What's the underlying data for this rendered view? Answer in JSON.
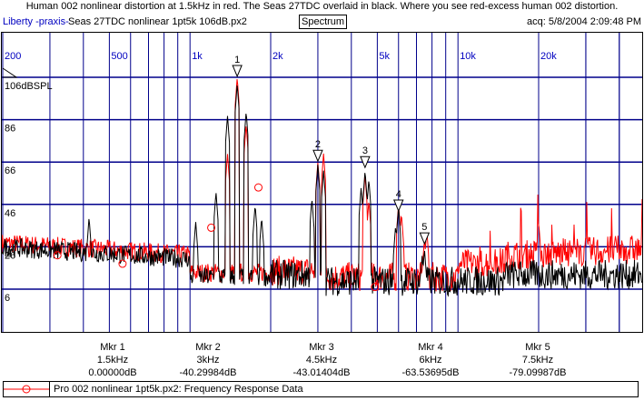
{
  "header": {
    "title": "Human 002 nonlinear distortion at 1.5kHz in red.  The Seas 27TDC overlaid in black. Where you see red-excess human 002 distortion.",
    "brand": "Liberty -praxis-",
    "file": "Seas 27TDC nonlinear 1pt5k 106dB.px2",
    "view_tab": "Spectrum",
    "acq": "acq: 5/8/2004 2:09:48 PM"
  },
  "chart_data": {
    "type": "line",
    "x_scale": "log",
    "xlim": [
      200,
      48000
    ],
    "ylim": [
      -13,
      127
    ],
    "x_tick_labels": [
      {
        "f": 200,
        "label": "200"
      },
      {
        "f": 500,
        "label": "500"
      },
      {
        "f": 1000,
        "label": "1k"
      },
      {
        "f": 2000,
        "label": "2k"
      },
      {
        "f": 5000,
        "label": "5k"
      },
      {
        "f": 10000,
        "label": "10k"
      },
      {
        "f": 20000,
        "label": "20k"
      }
    ],
    "y_tick_labels": [
      {
        "v": 106,
        "label": "106dBSPL"
      },
      {
        "v": 86,
        "label": "86"
      },
      {
        "v": 66,
        "label": "66"
      },
      {
        "v": 46,
        "label": "46"
      },
      {
        "v": 26,
        "label": "26"
      },
      {
        "v": 6,
        "label": "6"
      }
    ],
    "grid": true,
    "colors": {
      "grid": "#00008b",
      "black_series": "#000000",
      "red_series": "#ff0000",
      "marker_label": "#0000c0"
    },
    "series": [
      {
        "name": "Seas 27TDC nonlinear 1pt5k 106dB",
        "color": "#000000",
        "noise_floor_db": 10,
        "peaks": [
          [
            420,
            40
          ],
          [
            1050,
            38
          ],
          [
            1250,
            52
          ],
          [
            1380,
            88
          ],
          [
            1500,
            103
          ],
          [
            1620,
            90
          ],
          [
            1750,
            46
          ],
          [
            1850,
            40
          ],
          [
            3000,
            65
          ],
          [
            2850,
            49
          ],
          [
            3150,
            62
          ],
          [
            4500,
            62
          ],
          [
            4350,
            54
          ],
          [
            4650,
            58
          ],
          [
            6000,
            45
          ],
          [
            5850,
            36
          ],
          [
            7500,
            25
          ],
          [
            7350,
            22
          ]
        ]
      },
      {
        "name": "Pro 002 nonlinear 1pt5k.px2: Frequency Response Data",
        "color": "#ff0000",
        "noise_floor_db": 12,
        "peaks": [
          [
            1500,
            106
          ],
          [
            1380,
            70
          ],
          [
            1620,
            84
          ],
          [
            3000,
            66
          ],
          [
            3150,
            70
          ],
          [
            4500,
            60
          ],
          [
            4650,
            48
          ],
          [
            6000,
            46
          ],
          [
            6150,
            42
          ],
          [
            7500,
            30
          ],
          [
            7650,
            34
          ],
          [
            20000,
            38
          ],
          [
            30000,
            32
          ]
        ]
      }
    ],
    "markers": [
      {
        "id": "1",
        "label": "Mkr 1",
        "freq": "1.5kHz",
        "value": "0.00000dB",
        "f": 1500,
        "db": 106
      },
      {
        "id": "2",
        "label": "Mkr 2",
        "freq": "3kHz",
        "value": "-40.29984dB",
        "f": 3000,
        "db": 66
      },
      {
        "id": "3",
        "label": "Mkr 3",
        "freq": "4.5kHz",
        "value": "-43.01404dB",
        "f": 4500,
        "db": 63
      },
      {
        "id": "4",
        "label": "Mkr 4",
        "freq": "6kHz",
        "value": "-63.53695dB",
        "f": 6000,
        "db": 42.5
      },
      {
        "id": "5",
        "label": "Mkr 5",
        "freq": "7.5kHz",
        "value": "-79.09987dB",
        "f": 7500,
        "db": 27
      }
    ]
  },
  "legend": {
    "label": "Pro 002 nonlinear 1pt5k.px2:  Frequency Response Data"
  }
}
